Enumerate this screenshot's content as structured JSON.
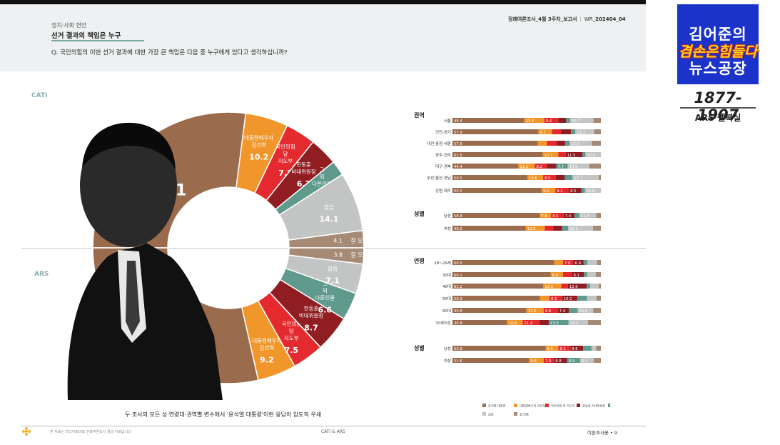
{
  "header": {
    "category": "정치·사회 현안",
    "title": "선거 결과의 책임은 누구",
    "question": "Q. 국민의힘의 이번 선거 결과에 대한 가장 큰 책임은 다음 중 누구에게 있다고 생각하십니까?",
    "doc_name": "정례여론조사_4월 3주차_보고서",
    "doc_code_prefix": "WR_",
    "doc_code": "202404_04"
  },
  "sidebar": {
    "brand_line1": "김어준의",
    "brand_line2": "겸손은힘들다",
    "brand_line3": "뉴스공장",
    "phone": "1877-1907",
    "room": "ARS 펠북실"
  },
  "labels": {
    "cati": "CATI",
    "ars": "ARS"
  },
  "bottom_note": "두 조사의 모든 성·연령대·권역별 변수에서 '윤석열 대통령'이란 응답이 압도적 우세",
  "footer": {
    "left": "본 자료는 미디어토마토 전화여론조사 결과 자료입니다",
    "middle": "CATI & ARS",
    "right": "여론조사꽃 •",
    "page": "9"
  },
  "colors": {
    "yoon": "#9a6b4c",
    "kim": "#f0962a",
    "ppp": "#e42a2e",
    "han": "#8f1d22",
    "other": "#5f9a8d",
    "none": "#c3c4c4",
    "dk": "#a58a76"
  },
  "chart_data": [
    {
      "type": "pie",
      "name": "CATI",
      "half": "top",
      "slices": [
        {
          "label": "윤석열 대통령",
          "value": 54.1,
          "color": "#9a6b4c"
        },
        {
          "label": "대통령배우자 김건희",
          "value": 10.2,
          "color": "#f0962a"
        },
        {
          "label": "국민의힘 당 지도부",
          "value": 7.2,
          "color": "#e42a2e"
        },
        {
          "label": "한동훈 비대위원장",
          "value": 6.7,
          "color": "#8f1d22"
        },
        {
          "label": "그 외 다른인물",
          "value": 3.6,
          "color": "#5f9a8d"
        },
        {
          "label": "없음",
          "value": 14.1,
          "color": "#c3c4c4"
        },
        {
          "label": "잘 모름",
          "value": 4.1,
          "color": "#a58a76"
        }
      ]
    },
    {
      "type": "pie",
      "name": "ARS",
      "half": "bottom",
      "slices": [
        {
          "label": "윤석열 대통령",
          "value": 57.1,
          "color": "#9a6b4c"
        },
        {
          "label": "대통령배우자 김건희",
          "value": 9.2,
          "color": "#f0962a"
        },
        {
          "label": "국민의힘 당 지도부",
          "value": 7.5,
          "color": "#e42a2e"
        },
        {
          "label": "한동훈 비대위원장",
          "value": 8.7,
          "color": "#8f1d22"
        },
        {
          "label": "그 외 다른인물",
          "value": 6.6,
          "color": "#5f9a8d"
        },
        {
          "label": "없음",
          "value": 7.1,
          "color": "#c3c4c4"
        },
        {
          "label": "잘 모름",
          "value": 3.8,
          "color": "#a58a76"
        }
      ]
    },
    {
      "type": "bar",
      "orientation": "horizontal",
      "stacked": true,
      "legend": [
        {
          "label": "윤석열 대통령",
          "color": "#9a6b4c"
        },
        {
          "label": "대통령배우자 김건희",
          "color": "#f0962a"
        },
        {
          "label": "국민의힘 당 지도부",
          "color": "#e42a2e"
        },
        {
          "label": "한동훈 비대위원장",
          "color": "#8f1d22"
        },
        {
          "label": "그 외 다른인물",
          "color": "#5f9a8d"
        },
        {
          "label": "없음",
          "color": "#c3c4c4"
        },
        {
          "label": "잘 모름",
          "color": "#a58a76"
        }
      ],
      "groups": [
        {
          "name": "권역",
          "rows": [
            {
              "label": "서울",
              "values": [
                48.4,
                13.5,
                9.4,
                5.3,
                2.7,
                15.7,
                5.0
              ]
            },
            {
              "label": "인천·경기",
              "values": [
                57.9,
                9.1,
                6.3,
                6.5,
                3.0,
                12.7,
                4.5
              ]
            },
            {
              "label": "대전·충청·세종",
              "values": [
                57.6,
                6.1,
                6.6,
                5.7,
                3.0,
                15.0,
                6.1
              ]
            },
            {
              "label": "광주·전라",
              "values": [
                61.5,
                10.7,
                5.0,
                11.5,
                2.0,
                10.5,
                0
              ]
            },
            {
              "label": "대구·경북",
              "values": [
                44.4,
                11.1,
                8.2,
                6.3,
                7.7,
                14.5,
                7.8
              ]
            },
            {
              "label": "부산·울산·경남",
              "values": [
                50.5,
                10.6,
                8.5,
                6.1,
                5.2,
                17.7,
                1.4
              ]
            },
            {
              "label": "강원·제주",
              "values": [
                60.2,
                9.1,
                9.1,
                8.5,
                2.3,
                10.8,
                0
              ]
            }
          ]
        },
        {
          "name": "성별",
          "rows": [
            {
              "label": "남성",
              "values": [
                58.8,
                7.6,
                8.5,
                7.4,
                3.2,
                11.3,
                3.2
              ]
            },
            {
              "label": "여성",
              "values": [
                49.6,
                12.8,
                5.9,
                5.9,
                4.0,
                16.9,
                5.3
              ]
            }
          ]
        },
        {
          "name": "연령",
          "rows": [
            {
              "label": "18~29세",
              "values": [
                68.5,
                6.0,
                7.0,
                6.9,
                2.5,
                6.5,
                2.6
              ]
            },
            {
              "label": "30대",
              "values": [
                66.1,
                8.4,
                6.0,
                8.1,
                2.2,
                5.7,
                3.5
              ]
            },
            {
              "label": "40대",
              "values": [
                61.2,
                12.1,
                4.5,
                12.6,
                2.4,
                5.8,
                1.4
              ]
            },
            {
              "label": "50대",
              "values": [
                58.9,
                6.5,
                8.5,
                10.2,
                6.5,
                6.5,
                2.9
              ]
            },
            {
              "label": "60대",
              "values": [
                49.8,
                11.6,
                9.6,
                7.4,
                5.9,
                10.6,
                5.1
              ]
            },
            {
              "label": "70세이상",
              "values": [
                36.8,
                10.6,
                11.4,
                6.2,
                13.3,
                13.2,
                8.7
              ]
            }
          ]
        },
        {
          "name": "성별",
          "rows": [
            {
              "label": "남성",
              "values": [
                62.8,
                8.5,
                8.1,
                8.6,
                5.7,
                3.1,
                3.2
              ]
            },
            {
              "label": "여성",
              "values": [
                51.6,
                9.8,
                7.0,
                8.8,
                8.9,
                9.1,
                4.8
              ]
            }
          ]
        }
      ]
    }
  ]
}
